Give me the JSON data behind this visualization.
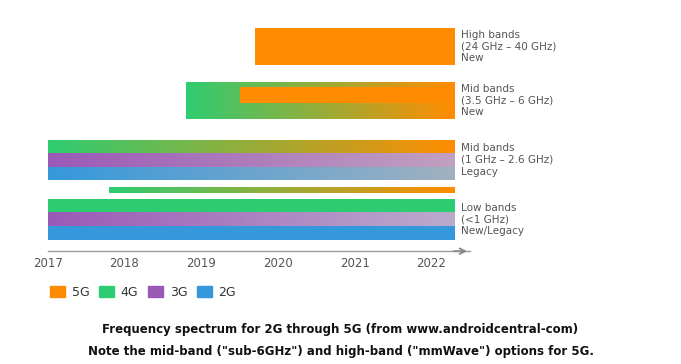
{
  "xmin": 2017,
  "xmax": 2022.5,
  "xticks": [
    2017,
    2018,
    2019,
    2020,
    2021,
    2022
  ],
  "color_5G": "#FF8C00",
  "color_4G": "#2ECC71",
  "color_3G": "#9B59B6",
  "color_2G": "#3498DB",
  "color_gray": "#AAAAAA",
  "caption_line1": "Frequency spectrum for 2G through 5G (from www.androidcentral-com)",
  "caption_line2": "Note the mid-band (\"sub-6GHz\") and high-band (\"mmWave\") options for 5G.",
  "legend_labels": [
    "5G",
    "4G",
    "3G",
    "2G"
  ],
  "legend_colors": [
    "#FF8C00",
    "#2ECC71",
    "#9B59B6",
    "#3498DB"
  ]
}
